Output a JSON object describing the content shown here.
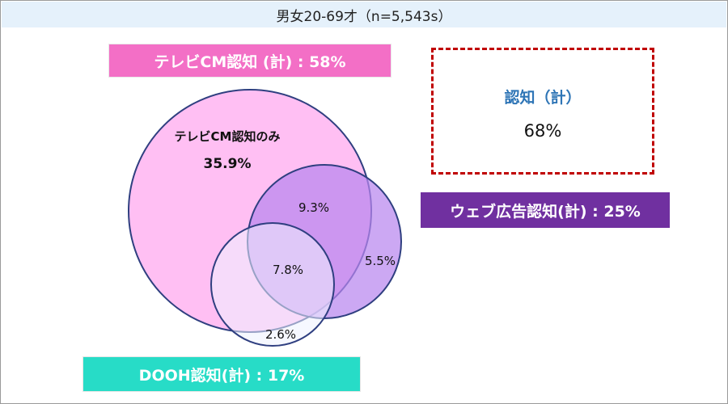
{
  "header": {
    "title": "男女20-69才（n=5,543s）"
  },
  "labels": {
    "tv": "テレビCM認知 (計) : 58%",
    "web": "ウェブ広告認知(計) : 25%",
    "dooh": "DOOH認知(計) : 17%"
  },
  "total": {
    "title": "認知（計）",
    "value": "68%"
  },
  "venn": {
    "tv_only_label": "テレビCM認知のみ",
    "tv_only_value": "35.9%",
    "tv_web": "9.3%",
    "tv_web_dooh": "7.8%",
    "web_only": "5.5%",
    "dooh_only": "2.6%"
  },
  "colors": {
    "tv_fill": "#ffbff3",
    "web_fill": "#b886ee",
    "dooh_fill": "#eef3ff",
    "circle_stroke": "#2f3f80",
    "header_bg": "#e5f1fb",
    "tv_box": "#f36fc6",
    "web_box": "#7030a0",
    "dooh_box": "#27dcc7",
    "total_border": "#c00000",
    "total_title": "#2e75b6"
  }
}
